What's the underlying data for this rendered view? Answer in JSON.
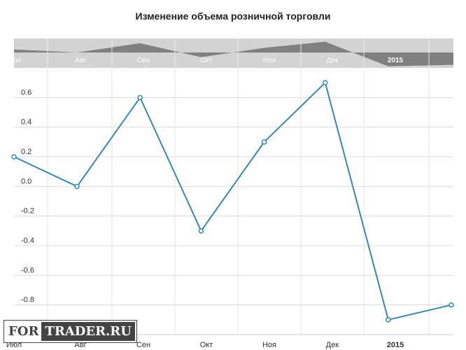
{
  "chart_data": {
    "type": "line",
    "title": "Изменение объема розничной торговли",
    "x": [
      "2014-07-01",
      "2014-08-01",
      "2014-09-01",
      "2014-10-01",
      "2014-11-01",
      "2014-12-01",
      "2015-01-01",
      "2015-02-01"
    ],
    "values": [
      0.2,
      0.0,
      0.6,
      -0.3,
      0.3,
      0.7,
      -0.9,
      -0.8
    ],
    "ylim": [
      -1.0,
      0.8
    ],
    "yticks": [
      "0.6",
      "0.4",
      "0.2",
      "0.0",
      "-0.2",
      "-0.4",
      "-0.6",
      "-0.8"
    ],
    "xticks": [
      "Июл",
      "Авг",
      "Сен",
      "Окт",
      "Ноя",
      "Дек",
      "2015"
    ],
    "grid": true,
    "line_color": "#3a87ad",
    "navigator": true
  },
  "watermark": {
    "part1": "FOR",
    "part2": "TRADER.RU"
  }
}
